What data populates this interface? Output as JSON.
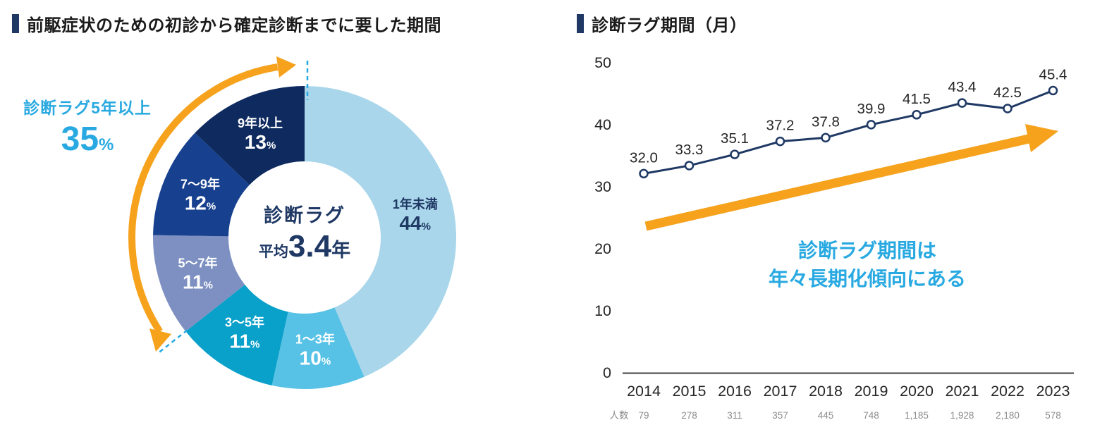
{
  "colors": {
    "navy": "#1f3864",
    "cyan": "#29a9e1",
    "orange": "#f6a21d",
    "axis": "#404040",
    "text": "#262626",
    "counts_gray": "#8c8c8c"
  },
  "left": {
    "title": "前駆症状のための初診から確定診断までに要した期間",
    "side_label": "診断ラグ5年以上",
    "side_value": "35",
    "side_unit": "%",
    "center_title": "診断ラグ",
    "center_prefix": "平均",
    "center_value": "3.4",
    "center_suffix": "年"
  },
  "right": {
    "title": "診断ラグ期間（月）",
    "trend_line1": "診断ラグ期間は",
    "trend_line2": "年々長期化傾向にある"
  },
  "chart_data": [
    {
      "type": "pie",
      "donut": true,
      "title": "前駆症状のための初診から確定診断までに要した期間",
      "center_label": "診断ラグ 平均3.4年",
      "annotation": "診断ラグ5年以上 35%",
      "segments": [
        {
          "label": "1年未満",
          "value": 44,
          "color": "#a9d6ea",
          "text": "#1f3864"
        },
        {
          "label": "1〜3年",
          "value": 10,
          "color": "#58c2e6",
          "text": "#ffffff"
        },
        {
          "label": "3〜5年",
          "value": 11,
          "color": "#09a0c9",
          "text": "#ffffff"
        },
        {
          "label": "5〜7年",
          "value": 11,
          "color": "#7d90c1",
          "text": "#ffffff"
        },
        {
          "label": "7〜9年",
          "value": 12,
          "color": "#17418f",
          "text": "#ffffff"
        },
        {
          "label": "9年以上",
          "value": 13,
          "color": "#0e2a5f",
          "text": "#ffffff"
        }
      ]
    },
    {
      "type": "line",
      "title": "診断ラグ期間（月）",
      "categories": [
        "2014",
        "2015",
        "2016",
        "2017",
        "2018",
        "2019",
        "2020",
        "2021",
        "2022",
        "2023"
      ],
      "values": [
        32.0,
        33.3,
        35.1,
        37.2,
        37.8,
        39.9,
        41.5,
        43.4,
        42.5,
        45.4
      ],
      "counts": [
        "79",
        "278",
        "311",
        "357",
        "445",
        "748",
        "1,185",
        "1,928",
        "2,180",
        "578"
      ],
      "counts_label": "人数",
      "ylim": [
        0,
        50
      ],
      "yticks": [
        0,
        10,
        20,
        30,
        40,
        50
      ],
      "grid": false,
      "legend": false,
      "annotation": "診断ラグ期間は年々長期化傾向にある"
    }
  ]
}
